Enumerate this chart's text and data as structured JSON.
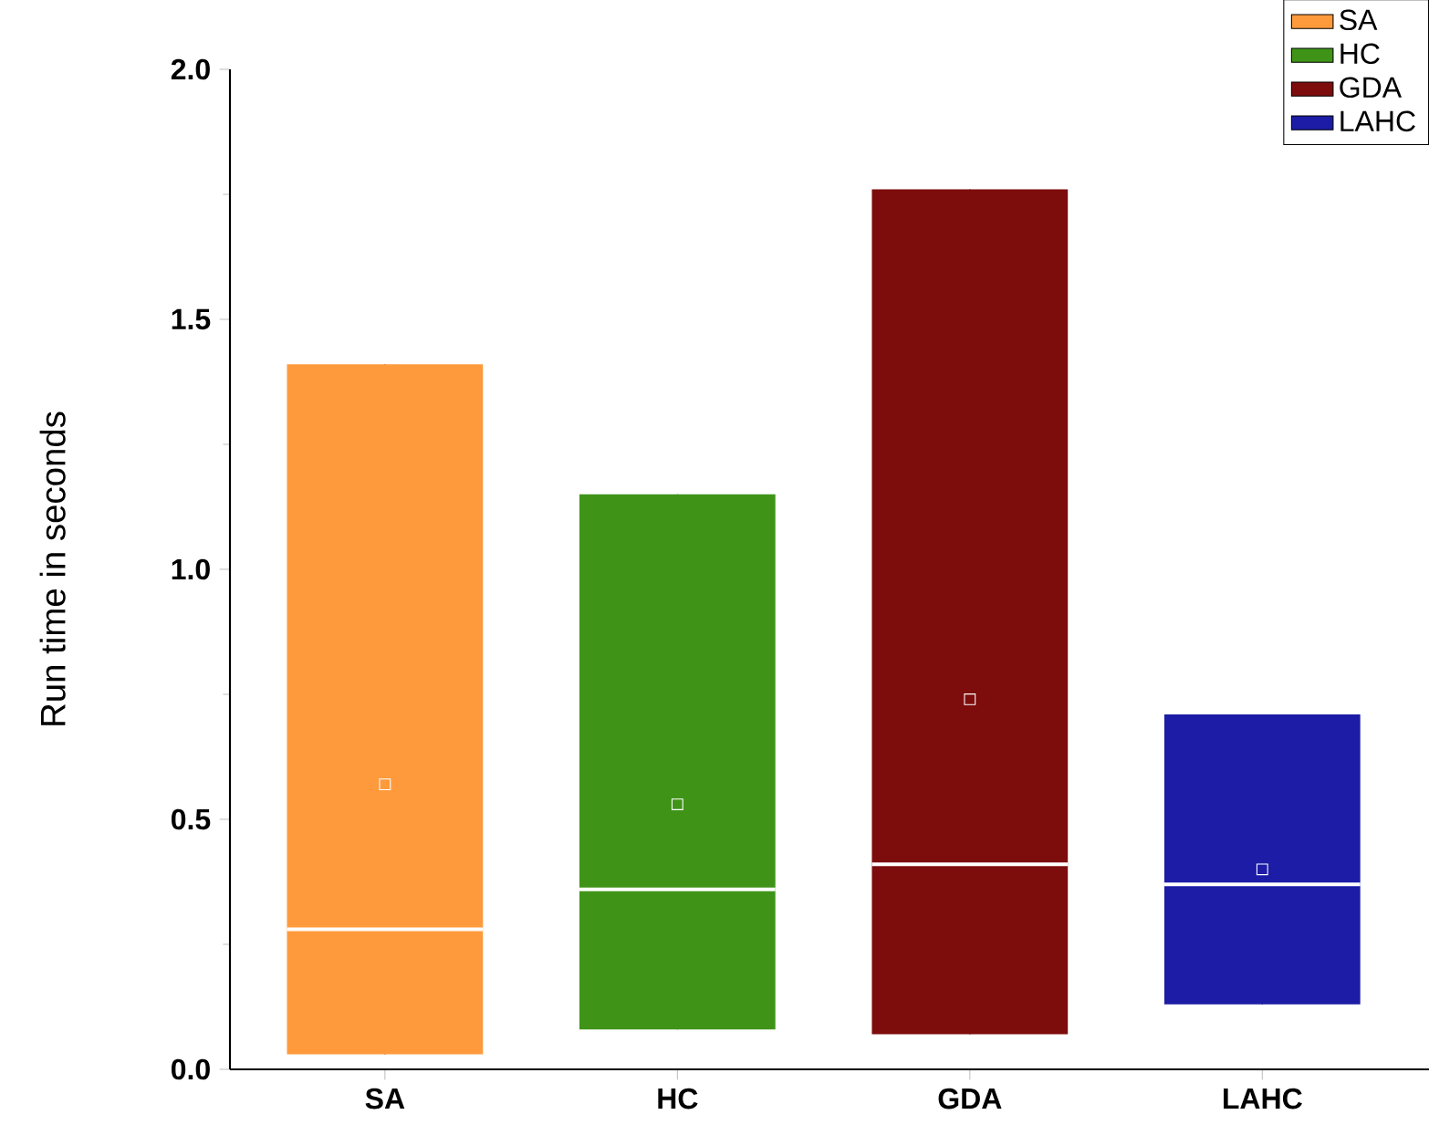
{
  "chart_data": {
    "type": "box",
    "ylabel": "Run time in seconds",
    "categories": [
      "SA",
      "HC",
      "GDA",
      "LAHC"
    ],
    "series": [
      {
        "name": "SA",
        "color": "#ff9a3c",
        "boxes": [
          {
            "low": 0.03,
            "q1": 0.03,
            "median": 0.28,
            "q3": 1.41,
            "high": 1.41,
            "mean": 0.57
          },
          null,
          null,
          null
        ]
      },
      {
        "name": "HC",
        "color": "#3f9418",
        "boxes": [
          null,
          {
            "low": 0.08,
            "q1": 0.08,
            "median": 0.36,
            "q3": 1.15,
            "high": 1.15,
            "mean": 0.53
          },
          null,
          null
        ]
      },
      {
        "name": "GDA",
        "color": "#7d0c0c",
        "boxes": [
          null,
          null,
          {
            "low": 0.07,
            "q1": 0.07,
            "median": 0.41,
            "q3": 1.76,
            "high": 1.76,
            "mean": 0.74
          },
          null
        ]
      },
      {
        "name": "LAHC",
        "color": "#1c1ca6",
        "boxes": [
          null,
          null,
          null,
          {
            "low": 0.13,
            "q1": 0.13,
            "median": 0.37,
            "q3": 0.71,
            "high": 0.71,
            "mean": 0.4
          }
        ]
      }
    ],
    "ylim": [
      0,
      2
    ],
    "yticks": [
      {
        "value": 0,
        "label": "0.0"
      },
      {
        "value": 0.5,
        "label": "0.5"
      },
      {
        "value": 1,
        "label": "1.0"
      },
      {
        "value": 1.5,
        "label": "1.5"
      },
      {
        "value": 2,
        "label": "2.0"
      }
    ],
    "legend": "top right"
  }
}
